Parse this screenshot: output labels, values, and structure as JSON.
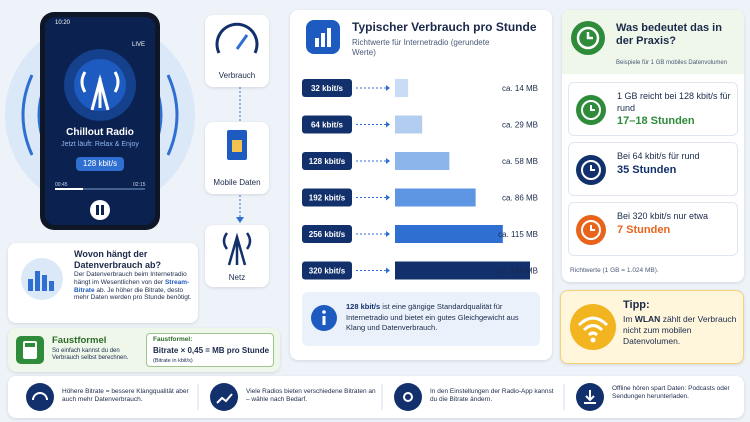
{
  "phone": {
    "time": "10:20",
    "live": "LIVE",
    "station": "Chillout Radio",
    "now_playing": "Jetzt läuft: Relax & Enjoy",
    "bitrate": "128 kbit/s",
    "elapsed": "00:45",
    "total": "02:15"
  },
  "flow": [
    "Verbrauch",
    "Mobile Daten",
    "Netz"
  ],
  "depends": {
    "title": "Wovon hängt der Datenverbrauch ab?",
    "text_before": "Der Datenverbrauch beim Internetradio hängt im Wesentlichen von der",
    "highlight": "Stream-Bitrate",
    "text_after": "ab. Je höher die Bitrate, desto mehr Daten werden pro Stunde benötigt."
  },
  "formula": {
    "title": "Faustformel",
    "text": "So einfach kannst du den Verbrauch selbst berechnen.",
    "box_title": "Faustformel:",
    "equation": "Bitrate × 0,45 = MB pro Stunde",
    "note": "(Bitrate in kbit/s)"
  },
  "usage": {
    "title": "Typischer Verbrauch pro Stunde",
    "subtitle": "Richtwerte für Internetradio (gerundete Werte)",
    "rows": [
      {
        "rate": "32 kbit/s",
        "value": 14,
        "label": "ca. 14 MB",
        "color": "#c9dcf5"
      },
      {
        "rate": "64 kbit/s",
        "value": 29,
        "label": "ca. 29 MB",
        "color": "#b3cdf1"
      },
      {
        "rate": "128 kbit/s",
        "value": 58,
        "label": "ca. 58 MB",
        "color": "#8cb5ec"
      },
      {
        "rate": "192 kbit/s",
        "value": 86,
        "label": "ca. 86 MB",
        "color": "#5d95e3"
      },
      {
        "rate": "256 kbit/s",
        "value": 115,
        "label": "ca. 115 MB",
        "color": "#2f6fd1"
      },
      {
        "rate": "320 kbit/s",
        "value": 144,
        "label": "ca. 144 MB",
        "color": "#12306b"
      }
    ],
    "info_bold": "128 kbit/s",
    "info_text": "ist eine gängige Standardqualität für Internetradio und bietet ein gutes Gleichgewicht aus Klang und Datenverbrauch."
  },
  "practice": {
    "title": "Was bedeutet das in der Praxis?",
    "subtitle": "Beispiele für 1 GB mobiles Datenvolumen",
    "items": [
      {
        "text": "1 GB reicht bei 128 kbit/s für rund",
        "highlight": "17–18 Stunden"
      },
      {
        "text": "Bei 64 kbit/s für rund",
        "highlight": "35 Stunden"
      },
      {
        "text": "Bei 320 kbit/s nur etwa",
        "highlight": "7 Stunden"
      }
    ],
    "footnote": "Richtwerte (1 GB = 1.024 MB)."
  },
  "tip": {
    "title": "Tipp:",
    "before": "Im",
    "bold": "WLAN",
    "after": "zählt der Verbrauch nicht zum mobilen Datenvolumen."
  },
  "bottom": [
    "Höhere Bitrate = bessere Klangqualität aber auch mehr Datenverbrauch.",
    "Viele Radios bieten verschiedene Bitraten an – wähle nach Bedarf.",
    "In den Einstellungen der Radio-App kannst du die Bitrate ändern.",
    "Offline hören spart Daten: Podcasts oder Sendungen herunterladen."
  ]
}
